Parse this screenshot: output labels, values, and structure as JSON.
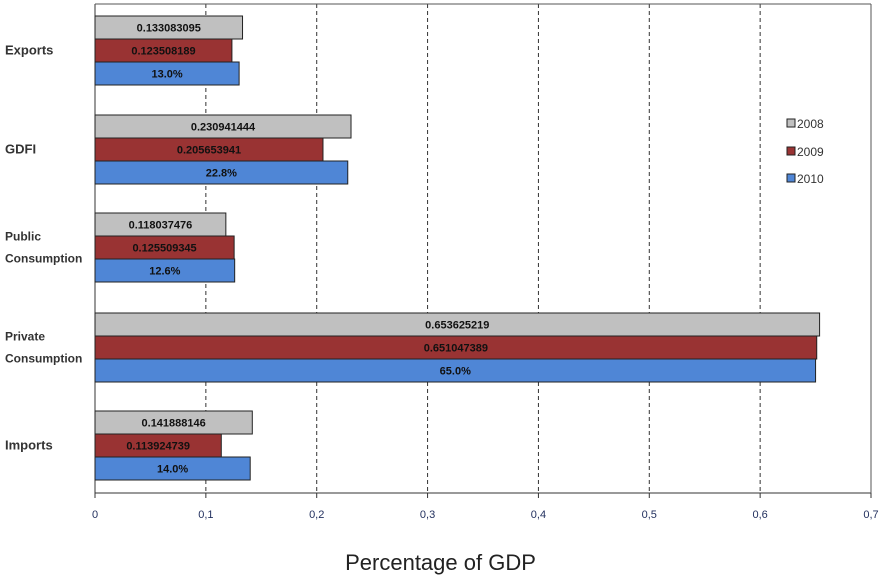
{
  "chart_data": {
    "type": "bar",
    "orientation": "horizontal",
    "categories": [
      "Exports",
      "GDFI",
      "Public Consumption",
      "Private Consumption",
      "Imports"
    ],
    "category_lines": [
      [
        "Exports"
      ],
      [
        "GDFI"
      ],
      [
        "Public",
        "Consumption"
      ],
      [
        "Private",
        "Consumption"
      ],
      [
        "Imports"
      ]
    ],
    "series": [
      {
        "name": "2008",
        "color": "#c0c0c0",
        "values": [
          0.133083095,
          0.230941444,
          0.118037476,
          0.653625219,
          0.141888146
        ],
        "labels": [
          "0.133083095",
          "0.230941444",
          "0.118037476",
          "0.653625219",
          "0.141888146"
        ]
      },
      {
        "name": "2009",
        "color": "#993333",
        "values": [
          0.123508189,
          0.205653941,
          0.125509345,
          0.651047389,
          0.113924739
        ],
        "labels": [
          "0.123508189",
          "0.205653941",
          "0.125509345",
          "0.651047389",
          "0.113924739"
        ]
      },
      {
        "name": "2010",
        "color": "#4f86d6",
        "values": [
          0.13,
          0.228,
          0.126,
          0.65,
          0.14
        ],
        "labels": [
          "13.0%",
          "22.8%",
          "12.6%",
          "65.0%",
          "14.0%"
        ]
      }
    ],
    "xlim": [
      0,
      0.7
    ],
    "xticks": [
      0,
      0.1,
      0.2,
      0.3,
      0.4,
      0.5,
      0.6,
      0.7
    ],
    "xtick_labels": [
      "0",
      "0,1",
      "0,2",
      "0,3",
      "0,4",
      "0,5",
      "0,6",
      "0,7"
    ],
    "xlabel": "Percentage of GDP",
    "grid": "vertical dashed",
    "legend_position": "right"
  }
}
